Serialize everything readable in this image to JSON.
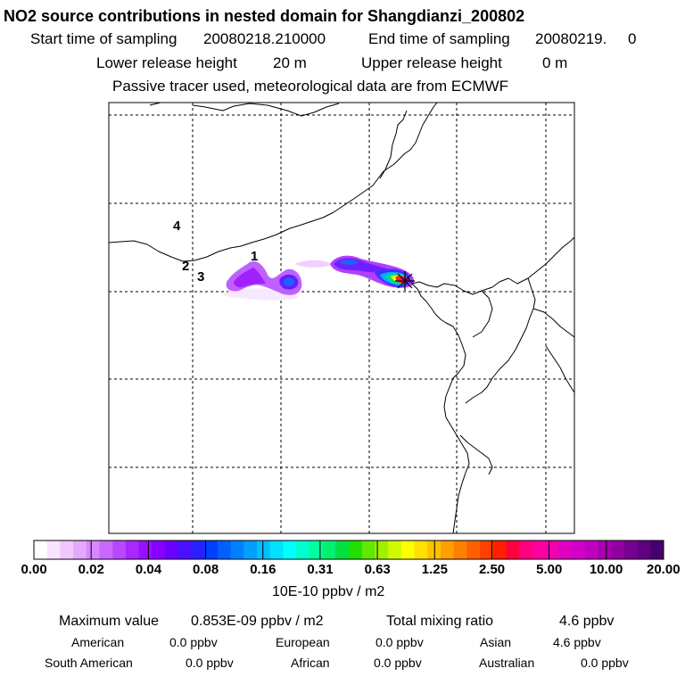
{
  "header": {
    "title": "NO2 source contributions in nested domain for Shangdianzi_200802",
    "start_label": "Start time of sampling",
    "start_value": "20080218.210000",
    "end_label": "End time of sampling",
    "end_value": "20080219.     0",
    "lower_label": "Lower release height",
    "lower_value": "20 m",
    "upper_label": "Upper release height",
    "upper_value": "0 m",
    "tracer_note": "Passive tracer used, meteorological data are from ECMWF"
  },
  "map": {
    "site_labels": [
      {
        "text": "1"
      },
      {
        "text": "2"
      },
      {
        "text": "3"
      },
      {
        "text": "4"
      }
    ],
    "receptor_marker": "star-cross-marker",
    "colors": {
      "purple": "#a000ff",
      "light_purple": "#d87cff",
      "pale_purple": "#f0c8ff",
      "blue": "#0050ff",
      "cyan": "#00c8ff",
      "green": "#00d070",
      "yellow": "#ffff00",
      "red": "#ff2020",
      "magenta": "#ff00a0"
    }
  },
  "colorbar": {
    "tick_labels": [
      "0.00",
      "0.02",
      "0.04",
      "0.08",
      "0.16",
      "0.31",
      "0.63",
      "1.25",
      "2.50",
      "5.00",
      "10.00",
      "20.00"
    ],
    "colors": [
      "#ffffff",
      "#f8e4ff",
      "#f0c8ff",
      "#e4a8ff",
      "#d888ff",
      "#c868ff",
      "#b848ff",
      "#a828ff",
      "#9810ff",
      "#8800ff",
      "#6a00ff",
      "#4a10ff",
      "#2a20ff",
      "#0040ff",
      "#0060ff",
      "#0080ff",
      "#00a0ff",
      "#00c0ff",
      "#00e0ff",
      "#00ffff",
      "#00ffd0",
      "#00ffa0",
      "#00f070",
      "#00e040",
      "#20e000",
      "#60e800",
      "#a0f000",
      "#d0f800",
      "#ffff00",
      "#ffe000",
      "#ffc000",
      "#ffa000",
      "#ff8000",
      "#ff6000",
      "#ff4000",
      "#ff2000",
      "#ff0040",
      "#ff0080",
      "#ff00a0",
      "#f000b0",
      "#e000c0",
      "#d000c8",
      "#c000c0",
      "#a800b0",
      "#9000a0",
      "#780090",
      "#600080",
      "#480070"
    ],
    "unit": "10E-10 ppbv / m2"
  },
  "summary": {
    "max_label": "Maximum value",
    "max_value": "0.853E-09 ppbv / m2",
    "total_label": "Total mixing ratio",
    "total_value": "4.6 ppbv",
    "regions": [
      {
        "name": "American",
        "value": "0.0 ppbv"
      },
      {
        "name": "European",
        "value": "0.0 ppbv"
      },
      {
        "name": "Asian",
        "value": "4.6 ppbv"
      },
      {
        "name": "South American",
        "value": "0.0 ppbv"
      },
      {
        "name": "African",
        "value": "0.0 ppbv"
      },
      {
        "name": "Australian",
        "value": "0.0 ppbv"
      }
    ]
  }
}
